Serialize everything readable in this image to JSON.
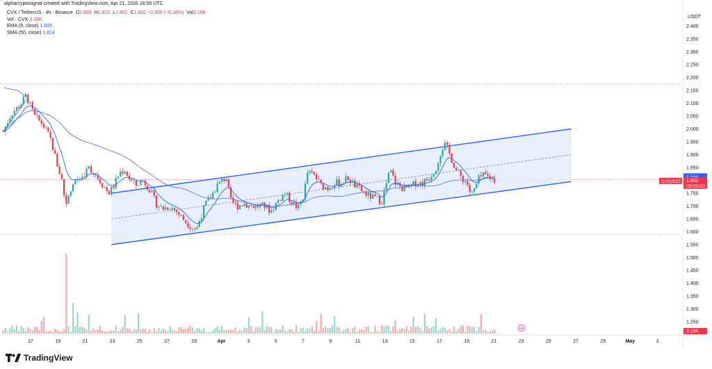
{
  "header": {
    "credit": "alphacryptosignal created with TradingView.com, Apr 21, 2026 16:56 UTC",
    "symbol_line": "CVX / TetherUS · 4h · Binance",
    "open_label": "O",
    "open": "1.809",
    "high_label": "H",
    "high": "1.812",
    "low_label": "L",
    "low": "1.801",
    "close_label": "C",
    "close": "1.802",
    "change": "−0.005 (−0.28%)",
    "vol_label": "Vol",
    "vol_value": "3.16K",
    "vol_line_name": "Vol · CVX",
    "vol_line_value": "3.16K",
    "ema_name": "EMA (9, close)",
    "ema_value": "1.805",
    "sma_name": "SMA (50, close)",
    "sma_value": "1.814"
  },
  "price_axis": {
    "unit": "USDT",
    "ticks": [
      "2.400",
      "2.350",
      "2.300",
      "2.250",
      "2.200",
      "2.150",
      "2.100",
      "2.050",
      "2.000",
      "1.950",
      "1.900",
      "1.850",
      "1.800",
      "1.750",
      "1.700",
      "1.650",
      "1.600",
      "1.550",
      "1.500",
      "1.450",
      "1.400",
      "1.350",
      "1.300",
      "1.250"
    ],
    "badges": {
      "sma": "1.814",
      "ema": "1.805",
      "symbol": "CVXUSDT",
      "price": "1.802",
      "countdown": "03:03:03",
      "volume": "3.16K"
    }
  },
  "time_axis": {
    "ticks": [
      "17",
      "19",
      "21",
      "23",
      "25",
      "27",
      "29",
      "Apr",
      "3",
      "5",
      "7",
      "9",
      "11",
      "13",
      "15",
      "17",
      "19",
      "21",
      "23",
      "25",
      "27",
      "29",
      "May",
      "3"
    ]
  },
  "colors": {
    "up": "#22ab94",
    "down": "#f23645",
    "ema": "#2962ff",
    "sma": "#5b7bd5",
    "channel": "#2962ff",
    "channel_fill": "#e3ecfd",
    "vol_up": "#9bd6cc",
    "vol_down": "#f7a9a7"
  },
  "footer": {
    "logo_text": "TradingView"
  },
  "chart_data": {
    "type": "candlestick",
    "symbol": "CVX / TetherUS",
    "timeframe": "4h",
    "exchange": "Binance",
    "ylim": [
      1.225,
      2.425
    ],
    "y_unit": "USDT",
    "x_range": [
      "Mar 15",
      "May 3"
    ],
    "horizontal_levels": [
      2.175,
      1.59
    ],
    "channel": {
      "upper": [
        [
          "Mar 23",
          1.75
        ],
        [
          "Apr 26",
          2.0
        ]
      ],
      "lower": [
        [
          "Mar 23",
          1.55
        ],
        [
          "Apr 26",
          1.795
        ]
      ],
      "mid": [
        [
          "Mar 23",
          1.65
        ],
        [
          "Apr 26",
          1.9
        ]
      ]
    },
    "price_path": [
      [
        15.0,
        1.99
      ],
      [
        15.6,
        2.06
      ],
      [
        16.2,
        2.09
      ],
      [
        16.7,
        2.13
      ],
      [
        17.3,
        2.05
      ],
      [
        17.9,
        2.02
      ],
      [
        18.5,
        1.96
      ],
      [
        19.0,
        1.86
      ],
      [
        19.4,
        1.79
      ],
      [
        19.6,
        1.7
      ],
      [
        19.9,
        1.76
      ],
      [
        20.3,
        1.8
      ],
      [
        20.8,
        1.81
      ],
      [
        21.3,
        1.85
      ],
      [
        21.9,
        1.82
      ],
      [
        22.4,
        1.78
      ],
      [
        22.8,
        1.75
      ],
      [
        23.2,
        1.78
      ],
      [
        23.6,
        1.83
      ],
      [
        24.0,
        1.84
      ],
      [
        24.4,
        1.8
      ],
      [
        24.8,
        1.78
      ],
      [
        25.3,
        1.8
      ],
      [
        25.8,
        1.77
      ],
      [
        26.3,
        1.71
      ],
      [
        26.8,
        1.69
      ],
      [
        27.3,
        1.7
      ],
      [
        27.8,
        1.68
      ],
      [
        28.3,
        1.65
      ],
      [
        28.9,
        1.62
      ],
      [
        29.3,
        1.61
      ],
      [
        29.6,
        1.66
      ],
      [
        30.0,
        1.71
      ],
      [
        30.4,
        1.74
      ],
      [
        30.8,
        1.78
      ],
      [
        31.2,
        1.8
      ],
      [
        31.5,
        1.81
      ],
      [
        31.8,
        1.72
      ],
      [
        32.3,
        1.7
      ],
      [
        32.8,
        1.71
      ],
      [
        33.3,
        1.7
      ],
      [
        33.8,
        1.7
      ],
      [
        34.3,
        1.7
      ],
      [
        34.8,
        1.68
      ],
      [
        35.3,
        1.72
      ],
      [
        35.8,
        1.75
      ],
      [
        36.3,
        1.72
      ],
      [
        36.8,
        1.69
      ],
      [
        37.2,
        1.74
      ],
      [
        37.5,
        1.83
      ],
      [
        38.0,
        1.82
      ],
      [
        38.5,
        1.78
      ],
      [
        39.0,
        1.77
      ],
      [
        39.5,
        1.79
      ],
      [
        40.0,
        1.79
      ],
      [
        40.5,
        1.81
      ],
      [
        41.0,
        1.78
      ],
      [
        41.5,
        1.76
      ],
      [
        42.0,
        1.74
      ],
      [
        42.5,
        1.73
      ],
      [
        43.0,
        1.72
      ],
      [
        43.3,
        1.78
      ],
      [
        43.6,
        1.84
      ],
      [
        44.0,
        1.79
      ],
      [
        44.5,
        1.77
      ],
      [
        45.0,
        1.77
      ],
      [
        45.5,
        1.79
      ],
      [
        46.0,
        1.79
      ],
      [
        46.5,
        1.81
      ],
      [
        47.0,
        1.85
      ],
      [
        47.4,
        1.92
      ],
      [
        47.7,
        1.94
      ],
      [
        48.1,
        1.89
      ],
      [
        48.5,
        1.84
      ],
      [
        48.9,
        1.81
      ],
      [
        49.3,
        1.79
      ],
      [
        49.6,
        1.74
      ],
      [
        49.9,
        1.77
      ],
      [
        50.2,
        1.81
      ],
      [
        50.6,
        1.82
      ],
      [
        51.0,
        1.81
      ],
      [
        51.4,
        1.8
      ]
    ],
    "ema": {
      "name": "EMA (9, close)",
      "last": 1.805
    },
    "sma": {
      "name": "SMA (50, close)",
      "last": 1.814
    },
    "volume_note": "Volume bars along the bottom; the largest spike lies near Mar 19."
  }
}
